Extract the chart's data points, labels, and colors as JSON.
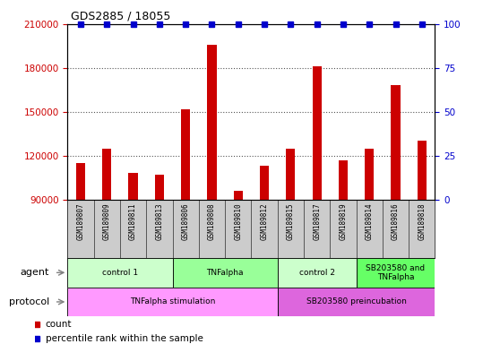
{
  "title": "GDS2885 / 18055",
  "samples": [
    "GSM189807",
    "GSM189809",
    "GSM189811",
    "GSM189813",
    "GSM189806",
    "GSM189808",
    "GSM189810",
    "GSM189812",
    "GSM189815",
    "GSM189817",
    "GSM189819",
    "GSM189814",
    "GSM189816",
    "GSM189818"
  ],
  "counts": [
    115000,
    125000,
    108000,
    107000,
    152000,
    196000,
    96000,
    113000,
    125000,
    181000,
    117000,
    125000,
    168000,
    130000
  ],
  "ylim_left": [
    90000,
    210000
  ],
  "ylim_right": [
    0,
    100
  ],
  "yticks_left": [
    90000,
    120000,
    150000,
    180000,
    210000
  ],
  "yticks_right": [
    0,
    25,
    50,
    75,
    100
  ],
  "grid_lines": [
    120000,
    150000,
    180000
  ],
  "agent_groups": [
    {
      "label": "control 1",
      "start": 0,
      "end": 4,
      "color": "#ccffcc"
    },
    {
      "label": "TNFalpha",
      "start": 4,
      "end": 8,
      "color": "#99ff99"
    },
    {
      "label": "control 2",
      "start": 8,
      "end": 11,
      "color": "#ccffcc"
    },
    {
      "label": "SB203580 and\nTNFalpha",
      "start": 11,
      "end": 14,
      "color": "#66ff66"
    }
  ],
  "protocol_groups": [
    {
      "label": "TNFalpha stimulation",
      "start": 0,
      "end": 8,
      "color": "#ff99ff"
    },
    {
      "label": "SB203580 preincubation",
      "start": 8,
      "end": 14,
      "color": "#dd66dd"
    }
  ],
  "bar_color": "#cc0000",
  "dot_color": "#0000cc",
  "grid_color": "#555555",
  "left_tick_color": "#cc0000",
  "right_tick_color": "#0000cc",
  "sample_bg_color": "#cccccc",
  "bar_width": 0.35
}
